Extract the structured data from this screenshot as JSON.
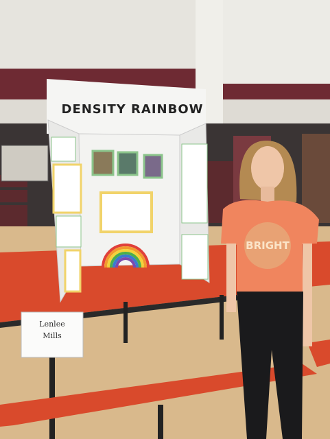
{
  "board": {
    "title": "DENSITY RAINBOW"
  },
  "name_card": {
    "lines": [
      "Lenlee",
      "Mills"
    ]
  },
  "shirt": {
    "text": "BRIGHT"
  }
}
